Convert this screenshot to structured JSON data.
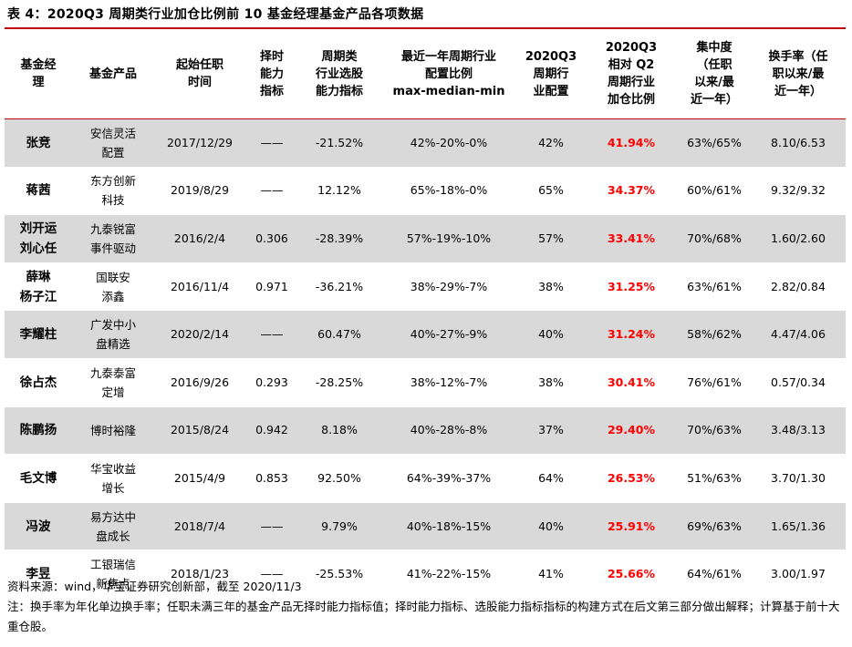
{
  "caption": "表 4：2020Q3 周期类行业加仓比例前 10 基金经理基金产品各项数据",
  "headers": [
    "基金经\n理",
    "基金产品",
    "起始任职\n时间",
    "择时\n能力\n指标",
    "周期类\n行业选股\n能力指标",
    "最近一年周期行业\n配置比例\nmax-median-min",
    "2020Q3\n周期行\n业配置",
    "2020Q3\n相对 Q2\n周期行业\n加仓比例",
    "集中度\n（任职\n以来/最\n近一年）",
    "换手率（任\n职以来/最\n近一年）"
  ],
  "rows": [
    {
      "manager": "张竞",
      "product": "安信灵活\n配置",
      "start": "2017/12/29",
      "timing": "——",
      "selection": "-21.52%",
      "range": "42%-20%-0%",
      "q3": "42%",
      "add": "41.94%",
      "conc": "63%/65%",
      "turnover": "8.10/6.53"
    },
    {
      "manager": "蒋茜",
      "product": "东方创新\n科技",
      "start": "2019/8/29",
      "timing": "——",
      "selection": "12.12%",
      "range": "65%-18%-0%",
      "q3": "65%",
      "add": "34.37%",
      "conc": "60%/61%",
      "turnover": "9.32/9.32"
    },
    {
      "manager": "刘开运\n刘心任",
      "product": "九泰锐富\n事件驱动",
      "start": "2016/2/4",
      "timing": "0.306",
      "selection": "-28.39%",
      "range": "57%-19%-10%",
      "q3": "57%",
      "add": "33.41%",
      "conc": "70%/68%",
      "turnover": "1.60/2.60"
    },
    {
      "manager": "薛琳\n杨子江",
      "product": "国联安\n添鑫",
      "start": "2016/11/4",
      "timing": "0.971",
      "selection": "-36.21%",
      "range": "38%-29%-7%",
      "q3": "38%",
      "add": "31.25%",
      "conc": "63%/61%",
      "turnover": "2.82/0.84"
    },
    {
      "manager": "李耀柱",
      "product": "广发中小\n盘精选",
      "start": "2020/2/14",
      "timing": "——",
      "selection": "60.47%",
      "range": "40%-27%-9%",
      "q3": "40%",
      "add": "31.24%",
      "conc": "58%/62%",
      "turnover": "4.47/4.06"
    },
    {
      "manager": "徐占杰",
      "product": "九泰泰富\n定增",
      "start": "2016/9/26",
      "timing": "0.293",
      "selection": "-28.25%",
      "range": "38%-12%-7%",
      "q3": "38%",
      "add": "30.41%",
      "conc": "76%/61%",
      "turnover": "0.57/0.34"
    },
    {
      "manager": "陈鹏扬",
      "product": "博时裕隆",
      "start": "2015/8/24",
      "timing": "0.942",
      "selection": "8.18%",
      "range": "40%-28%-8%",
      "q3": "37%",
      "add": "29.40%",
      "conc": "70%/63%",
      "turnover": "3.48/3.13"
    },
    {
      "manager": "毛文博",
      "product": "华宝收益\n增长",
      "start": "2015/4/9",
      "timing": "0.853",
      "selection": "92.50%",
      "range": "64%-39%-37%",
      "q3": "64%",
      "add": "26.53%",
      "conc": "51%/63%",
      "turnover": "3.70/1.30"
    },
    {
      "manager": "冯波",
      "product": "易方达中\n盘成长",
      "start": "2018/7/4",
      "timing": "——",
      "selection": "9.79%",
      "range": "40%-18%-15%",
      "q3": "40%",
      "add": "25.91%",
      "conc": "69%/63%",
      "turnover": "1.65/1.36"
    },
    {
      "manager": "李昱",
      "product": "工银瑞信\n新焦点",
      "start": "2018/1/23",
      "timing": "——",
      "selection": "-25.53%",
      "range": "41%-22%-15%",
      "q3": "41%",
      "add": "25.66%",
      "conc": "64%/61%",
      "turnover": "3.00/1.97"
    }
  ],
  "source": "资料来源：wind，华宝证券研究创新部，截至 2020/11/3",
  "note": "注：换手率为年化单边换手率；任职未满三年的基金产品无择时能力指标值；择时能力指标、选股能力指标指标的构建方式在后文第三部分做出解释；计算基于前十大重仓股。",
  "colors": {
    "accent_rule": "#c00000",
    "highlight": "#ff0000",
    "stripe": "#d9d9d9"
  }
}
